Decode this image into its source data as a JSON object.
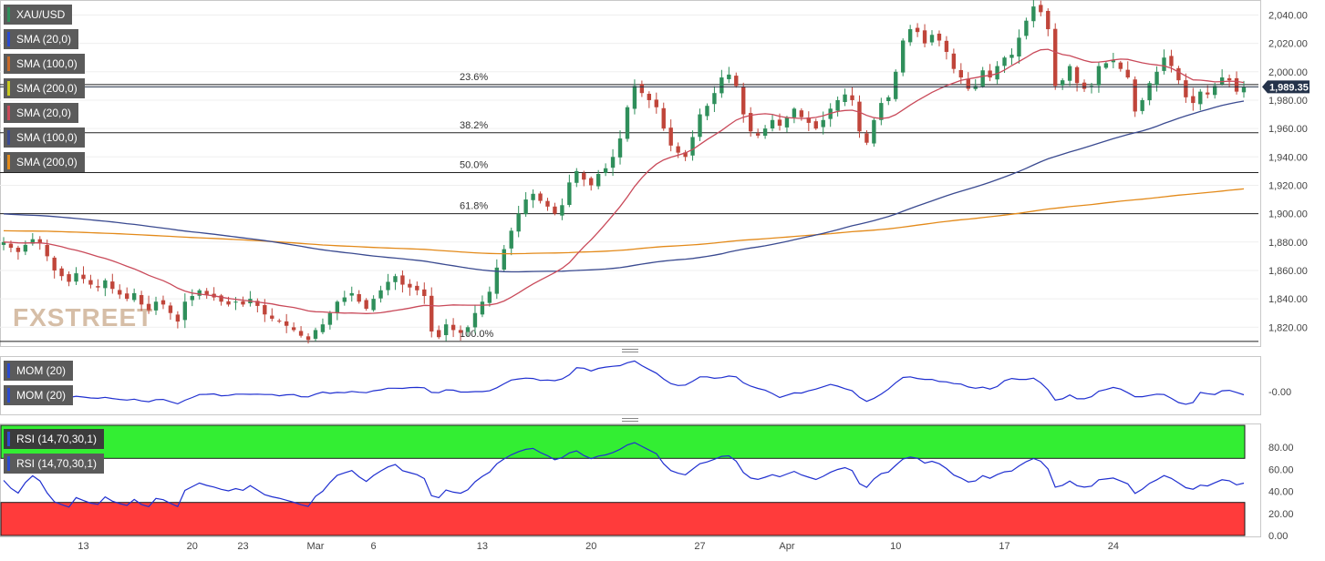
{
  "chart_data": [
    {
      "type": "candlestick",
      "symbol": "XAU/USD",
      "last_price": 1989.35,
      "ylim": [
        1808,
        2048
      ],
      "y_ticks": [
        1820,
        1840,
        1860,
        1880,
        1900,
        1920,
        1940,
        1960,
        1980,
        2000,
        2020,
        2040
      ],
      "y_tick_labels": [
        "1,820.00",
        "1,840.00",
        "1,860.00",
        "1,880.00",
        "1,900.00",
        "1,920.00",
        "1,940.00",
        "1,960.00",
        "1,980.00",
        "2,000.00",
        "2,020.00",
        "2,040.00"
      ],
      "x_tick_labels": [
        "13",
        "20",
        "23",
        "Mar",
        "6",
        "13",
        "20",
        "27",
        "Apr",
        "10",
        "17",
        "24"
      ],
      "x_tick_positions": [
        11,
        26,
        33,
        43,
        51,
        66,
        81,
        96,
        108,
        123,
        138,
        153
      ],
      "legend": [
        {
          "label": "XAU/USD",
          "color": "#2f8f5b"
        },
        {
          "label": "SMA (20,0)",
          "color": "#2a4bd0"
        },
        {
          "label": "SMA (100,0)",
          "color": "#c76a2a"
        },
        {
          "label": "SMA (200,0)",
          "color": "#c8c820"
        },
        {
          "label": "SMA (20,0)",
          "color": "#c94a5a"
        },
        {
          "label": "SMA (100,0)",
          "color": "#3a4a90"
        },
        {
          "label": "SMA (200,0)",
          "color": "#e38a1a"
        }
      ],
      "fibonacci": [
        {
          "label": "23.6%",
          "value": 1991
        },
        {
          "label": "38.2%",
          "value": 1957
        },
        {
          "label": "50.0%",
          "value": 1929
        },
        {
          "label": "61.8%",
          "value": 1900
        },
        {
          "label": "100.0%",
          "value": 1810
        }
      ],
      "close": [
        1880,
        1876,
        1873,
        1878,
        1882,
        1879,
        1870,
        1860,
        1856,
        1852,
        1858,
        1854,
        1850,
        1848,
        1853,
        1847,
        1843,
        1840,
        1844,
        1836,
        1832,
        1838,
        1836,
        1830,
        1824,
        1838,
        1842,
        1846,
        1843,
        1841,
        1838,
        1836,
        1838,
        1836,
        1840,
        1835,
        1829,
        1826,
        1824,
        1821,
        1818,
        1814,
        1811,
        1818,
        1822,
        1830,
        1838,
        1841,
        1844,
        1838,
        1833,
        1840,
        1846,
        1852,
        1856,
        1850,
        1848,
        1846,
        1842,
        1817,
        1813,
        1822,
        1818,
        1816,
        1820,
        1830,
        1838,
        1845,
        1862,
        1875,
        1888,
        1900,
        1910,
        1914,
        1909,
        1905,
        1900,
        1906,
        1922,
        1930,
        1924,
        1920,
        1928,
        1932,
        1940,
        1953,
        1975,
        1990,
        1985,
        1980,
        1975,
        1960,
        1948,
        1943,
        1940,
        1954,
        1970,
        1976,
        1985,
        1996,
        1998,
        1990,
        1970,
        1958,
        1955,
        1960,
        1966,
        1962,
        1968,
        1974,
        1968,
        1964,
        1960,
        1966,
        1974,
        1980,
        1984,
        1980,
        1958,
        1950,
        1966,
        1978,
        1982,
        2000,
        2022,
        2030,
        2028,
        2020,
        2026,
        2022,
        2014,
        2002,
        1996,
        1988,
        1990,
        2001,
        1996,
        2004,
        2010,
        2012,
        2024,
        2036,
        2046,
        2042,
        2030,
        1990,
        1994,
        2004,
        1992,
        1988,
        1990,
        2004,
        2006,
        2008,
        2002,
        1996,
        1972,
        1980,
        1992,
        2000,
        2010,
        2004,
        1994,
        1982,
        1978,
        1986,
        1984,
        1990,
        1996,
        1994,
        1986,
        1989
      ]
    },
    {
      "type": "line",
      "title": "MOM (20)",
      "y_tick_labels": [
        "-0.00"
      ],
      "legend": [
        {
          "label": "MOM (20)"
        },
        {
          "label": "MOM (20)"
        }
      ]
    },
    {
      "type": "line",
      "title": "RSI (14,70,30,1)",
      "ylim": [
        0,
        100
      ],
      "y_ticks": [
        0,
        20,
        40,
        60,
        80
      ],
      "y_tick_labels": [
        "0.00",
        "20.00",
        "40.00",
        "60.00",
        "80.00"
      ],
      "overbought": 70,
      "oversold": 30,
      "legend": [
        {
          "label": "RSI (14,70,30,1)"
        },
        {
          "label": "RSI (14,70,30,1)"
        }
      ]
    }
  ],
  "watermark": "FXSTREET",
  "colors": {
    "bull": "#2f8f5b",
    "bear": "#c0453a",
    "sma20": "#c94a5a",
    "sma100": "#3a4a90",
    "sma200": "#e38a1a",
    "mom": "#1f2fd0",
    "rsi": "#1f2fd0",
    "overbought": "#33ee33",
    "oversold": "#ff3b3b",
    "price_badge": "#24324a"
  }
}
